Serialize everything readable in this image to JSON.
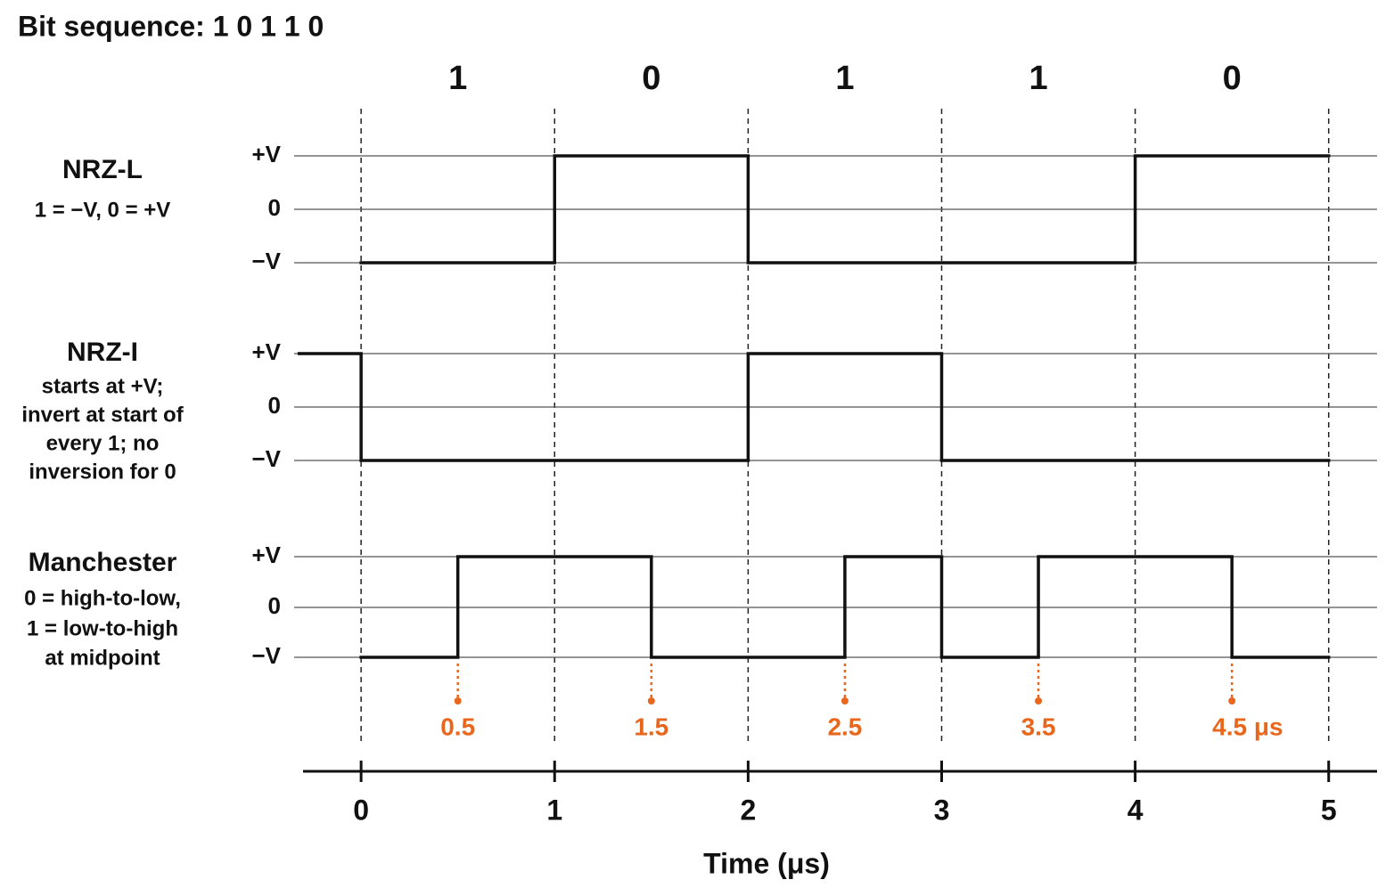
{
  "title": "Bit sequence: 1 0 1 1 0",
  "bits": [
    "1",
    "0",
    "1",
    "1",
    "0"
  ],
  "axis": {
    "label": "Time (μs)",
    "xlim": [
      -0.3,
      5.25
    ],
    "xticks": [
      0,
      1,
      2,
      3,
      4,
      5
    ]
  },
  "midpoints": [
    0.5,
    1.5,
    2.5,
    3.5,
    {
      "value": 4.5,
      "label": "4.5 μs"
    }
  ],
  "levels": [
    "+V",
    "0",
    "−V"
  ],
  "rows": [
    {
      "name": "NRZ-L",
      "description": [
        "1 = −V, 0 = +V"
      ],
      "segments": [
        {
          "from": 0,
          "to": 1,
          "level": "−V"
        },
        {
          "from": 1,
          "to": 2,
          "level": "+V"
        },
        {
          "from": 2,
          "to": 4,
          "level": "−V"
        },
        {
          "from": 4,
          "to": 5,
          "level": "+V"
        }
      ]
    },
    {
      "name": "NRZ-I",
      "description": [
        "starts at +V;",
        "invert at start of",
        "every 1; no",
        "inversion for 0"
      ],
      "segments": [
        {
          "from": -0.32,
          "to": 0,
          "level": "+V"
        },
        {
          "from": 0,
          "to": 2,
          "level": "−V"
        },
        {
          "from": 2,
          "to": 3,
          "level": "+V"
        },
        {
          "from": 3,
          "to": 5,
          "level": "−V"
        }
      ]
    },
    {
      "name": "Manchester",
      "description": [
        "0 = high-to-low,",
        "1 = low-to-high",
        "at midpoint"
      ],
      "segments": [
        {
          "from": 0,
          "to": 0.5,
          "level": "−V"
        },
        {
          "from": 0.5,
          "to": 1.5,
          "level": "+V"
        },
        {
          "from": 1.5,
          "to": 2.5,
          "level": "−V"
        },
        {
          "from": 2.5,
          "to": 3,
          "level": "+V"
        },
        {
          "from": 3,
          "to": 3.5,
          "level": "−V"
        },
        {
          "from": 3.5,
          "to": 4.5,
          "level": "+V"
        },
        {
          "from": 4.5,
          "to": 5,
          "level": "−V"
        }
      ]
    }
  ]
}
